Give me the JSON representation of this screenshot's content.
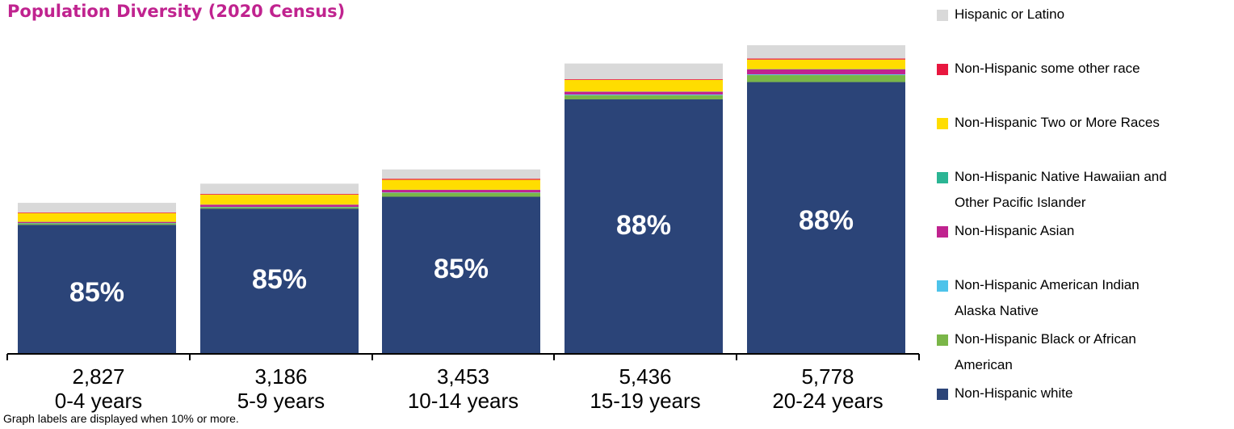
{
  "chart_data": {
    "type": "bar",
    "stacked": true,
    "title": "Population Diversity (2020 Census)",
    "categories": [
      "0-4 years",
      "5-9 years",
      "10-14 years",
      "15-19 years",
      "20-24 years"
    ],
    "totals": [
      "2,827",
      "3,186",
      "3,453",
      "5,436",
      "5,778"
    ],
    "total_values": [
      2827,
      3186,
      3453,
      5436,
      5778
    ],
    "bar_labels": [
      "85%",
      "85%",
      "85%",
      "88%",
      "88%"
    ],
    "series": [
      {
        "name": "Non-Hispanic white",
        "color": "#2b4478",
        "values": [
          2417,
          2720,
          2942,
          4765,
          5089
        ]
      },
      {
        "name": "Non-Hispanic Black or African American",
        "color": "#7ab648",
        "values": [
          26,
          26,
          74,
          78,
          132
        ]
      },
      {
        "name": "Non-Hispanic American Indian Alaska Native",
        "color": "#4dc3ea",
        "values": [
          7,
          7,
          7,
          13,
          13
        ]
      },
      {
        "name": "Non-Hispanic Asian",
        "color": "#c0238f",
        "values": [
          20,
          39,
          47,
          51,
          92
        ]
      },
      {
        "name": "Non-Hispanic Native Hawaiian and Other Pacific Islander",
        "color": "#2bb594",
        "values": [
          3,
          3,
          3,
          5,
          5
        ]
      },
      {
        "name": "Non-Hispanic Two or More Races",
        "color": "#ffdd00",
        "values": [
          163,
          186,
          186,
          217,
          179
        ]
      },
      {
        "name": "Non-Hispanic some other race",
        "color": "#e8173f",
        "values": [
          13,
          13,
          20,
          13,
          20
        ]
      },
      {
        "name": "Hispanic or Latino",
        "color": "#d9d9d9",
        "values": [
          178,
          192,
          174,
          294,
          248
        ]
      }
    ],
    "ylim": [
      0,
      6000
    ],
    "legend_position": "right",
    "grid": false
  },
  "legend": {
    "items": [
      {
        "lines": [
          "Hispanic or Latino"
        ],
        "color": "#d9d9d9"
      },
      {
        "lines": [
          "Non-Hispanic some other race"
        ],
        "color": "#e8173f"
      },
      {
        "lines": [
          "Non-Hispanic Two or More Races"
        ],
        "color": "#ffdd00"
      },
      {
        "lines": [
          "Non-Hispanic Native Hawaiian and",
          "Other Pacific Islander"
        ],
        "color": "#2bb594"
      },
      {
        "lines": [
          "Non-Hispanic Asian"
        ],
        "color": "#c0238f"
      },
      {
        "lines": [
          "Non-Hispanic American Indian",
          "Alaska Native"
        ],
        "color": "#4dc3ea"
      },
      {
        "lines": [
          "Non-Hispanic Black or African",
          "American"
        ],
        "color": "#7ab648"
      },
      {
        "lines": [
          "Non-Hispanic white"
        ],
        "color": "#2b4478"
      }
    ]
  },
  "footnote": "Graph labels are displayed when 10% or more.",
  "colors": {
    "title": "#c0238f",
    "axis": "#000000"
  }
}
